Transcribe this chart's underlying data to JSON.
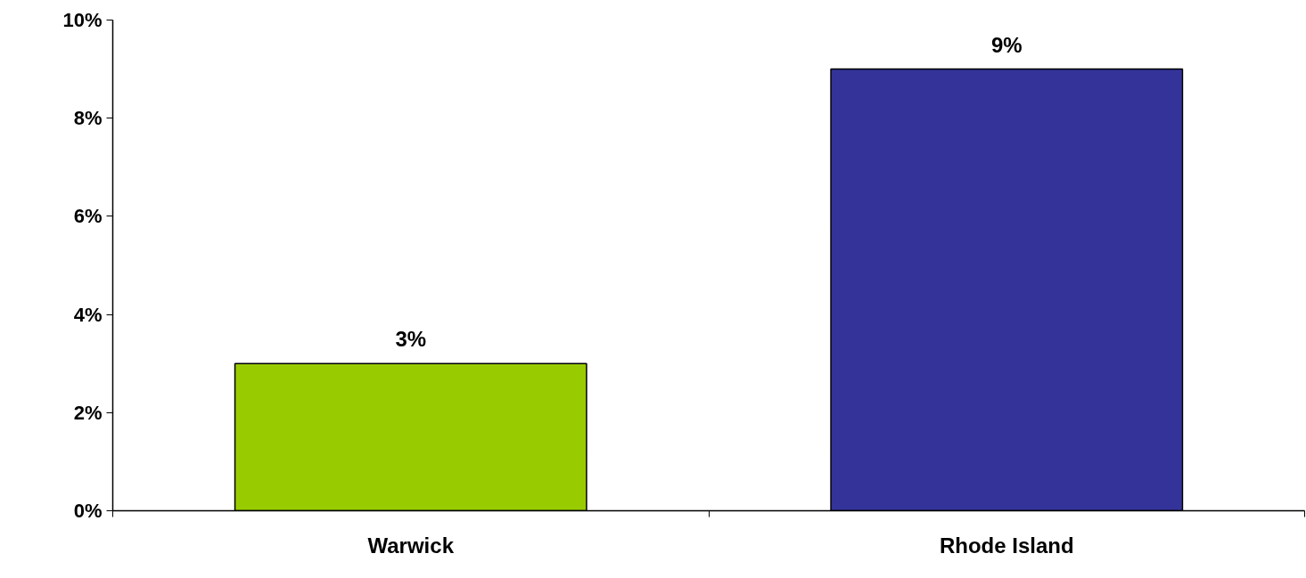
{
  "chart_data": {
    "type": "bar",
    "categories": [
      "Warwick",
      "Rhode Island"
    ],
    "values": [
      3,
      9
    ],
    "colors": [
      "#99cc00",
      "#333399"
    ],
    "ylim": [
      0,
      10
    ],
    "yticks": [
      {
        "value": 0,
        "label": "0%"
      },
      {
        "value": 2,
        "label": "2%"
      },
      {
        "value": 4,
        "label": "4%"
      },
      {
        "value": 6,
        "label": "6%"
      },
      {
        "value": 8,
        "label": "8%"
      },
      {
        "value": 10,
        "label": "10%"
      }
    ],
    "value_labels": [
      "3%",
      "9%"
    ],
    "grid": false
  }
}
